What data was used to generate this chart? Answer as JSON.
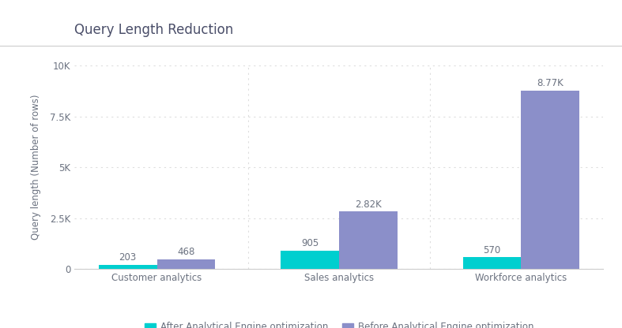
{
  "title": "Query Length Reduction",
  "ylabel": "Query length (Number of rows)",
  "categories": [
    "Customer analytics",
    "Sales analytics",
    "Workforce analytics"
  ],
  "after_values": [
    203,
    905,
    570
  ],
  "before_values": [
    468,
    2820,
    8770
  ],
  "after_labels": [
    "203",
    "905",
    "570"
  ],
  "before_labels": [
    "468",
    "2.82K",
    "8.77K"
  ],
  "after_color": "#00CFCF",
  "before_color": "#8B8FC9",
  "background_color": "#FFFFFF",
  "title_fontsize": 12,
  "label_fontsize": 8.5,
  "tick_fontsize": 8.5,
  "legend_labels": [
    "After Analytical Engine optimization",
    "Before Analytical Engine optimization"
  ],
  "ylim": [
    0,
    10000
  ],
  "yticks": [
    0,
    2500,
    5000,
    7500,
    10000
  ],
  "ytick_labels": [
    "0",
    "2.5K",
    "5K",
    "7.5K",
    "10K"
  ],
  "bar_width": 0.32,
  "grid_color": "#DDDDDD",
  "spine_color": "#CCCCCC",
  "text_color": "#6B7280",
  "title_color": "#4A4E69"
}
